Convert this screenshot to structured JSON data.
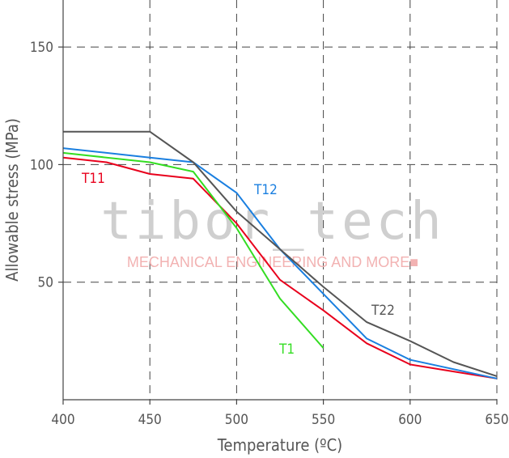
{
  "chart_data": {
    "type": "line",
    "title": "",
    "xlabel": "Temperature (ºC)",
    "ylabel": "Allowable stress (MPa)",
    "xlim": [
      400,
      650
    ],
    "ylim": [
      0,
      170
    ],
    "grid": true,
    "x_ticks": [
      "400",
      "450",
      "500",
      "550",
      "600",
      "650"
    ],
    "y_ticks": [
      "50",
      "100",
      "150"
    ],
    "x_tick_values": [
      400,
      450,
      500,
      550,
      600,
      650
    ],
    "y_tick_values": [
      50,
      100,
      150
    ],
    "series": [
      {
        "name": "T11",
        "color": "#e8001c",
        "x": [
          400,
          425,
          450,
          475,
          500,
          525,
          550,
          575,
          600,
          625,
          650
        ],
        "y": [
          103,
          101,
          96,
          94,
          75,
          51,
          38,
          24,
          15,
          12,
          9
        ]
      },
      {
        "name": "T12",
        "color": "#1a7fe0",
        "x": [
          400,
          450,
          475,
          500,
          525,
          550,
          575,
          600,
          625,
          650
        ],
        "y": [
          107,
          103,
          101,
          88,
          64,
          45,
          26,
          17,
          13,
          9
        ]
      },
      {
        "name": "T1",
        "color": "#33dd22",
        "x": [
          400,
          450,
          475,
          500,
          525,
          550
        ],
        "y": [
          105,
          101,
          97,
          73,
          43,
          22
        ]
      },
      {
        "name": "T22",
        "color": "#555555",
        "x": [
          400,
          450,
          475,
          500,
          525,
          550,
          575,
          600,
          625,
          650
        ],
        "y": [
          114,
          114,
          101,
          80,
          64,
          48,
          33,
          25,
          16,
          10
        ]
      }
    ]
  },
  "watermark": {
    "brand": "tibor_tech",
    "tagline": "MECHANICAL ENGINEERING AND MORE■"
  }
}
